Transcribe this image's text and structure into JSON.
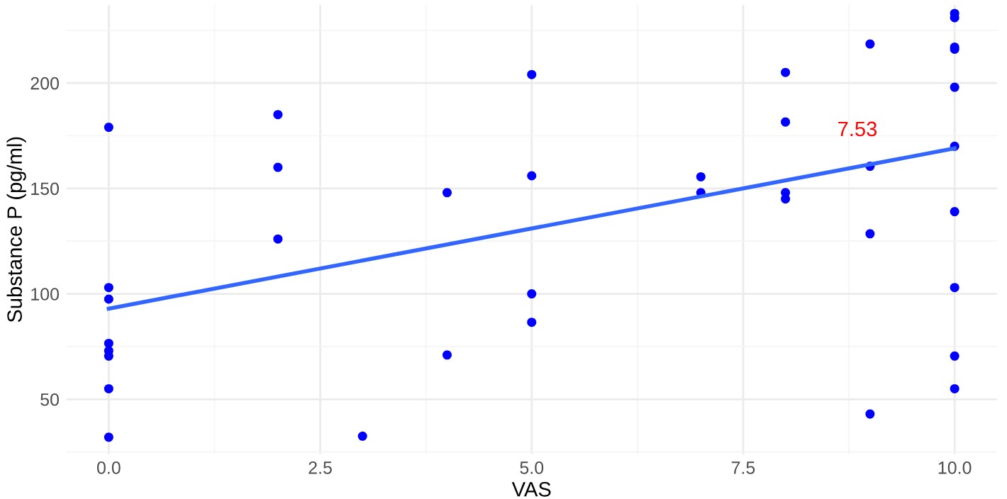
{
  "chart_data": {
    "type": "scatter",
    "xlabel": "VAS",
    "ylabel": "Substance P (pg/ml)",
    "xlim": [
      -0.5,
      10.5
    ],
    "ylim": [
      24,
      237
    ],
    "xticks": [
      {
        "value": 0,
        "label": "0.0"
      },
      {
        "value": 2.5,
        "label": "2.5"
      },
      {
        "value": 5,
        "label": "5.0"
      },
      {
        "value": 7.5,
        "label": "7.5"
      },
      {
        "value": 10,
        "label": "10.0"
      }
    ],
    "yticks": [
      50,
      100,
      150,
      200
    ],
    "grid": true,
    "series": [
      {
        "color": "#0000ff",
        "marker": "circle",
        "x": [
          0,
          0,
          0,
          0,
          0,
          0,
          0,
          0,
          2,
          2,
          2,
          3,
          4,
          4,
          5,
          5,
          5,
          5,
          7,
          7,
          8,
          8,
          8,
          8,
          9,
          9,
          9,
          9,
          10,
          10,
          10,
          10,
          10,
          10,
          10,
          10,
          10,
          10
        ],
        "values": [
          179,
          103,
          97.5,
          76.5,
          73,
          70.5,
          55,
          32,
          185,
          160,
          126,
          32.5,
          148,
          71,
          204,
          156,
          100,
          86.5,
          155.5,
          148,
          205,
          181.5,
          148,
          145,
          218.5,
          160.5,
          128.5,
          43,
          233,
          231,
          217,
          216,
          198,
          170,
          139,
          103,
          70.5,
          55
        ]
      },
      {
        "type": "line",
        "color": "#3366ff",
        "x": [
          0,
          10
        ],
        "values": [
          93,
          169
        ]
      }
    ],
    "annotations": [
      "7.53"
    ]
  }
}
